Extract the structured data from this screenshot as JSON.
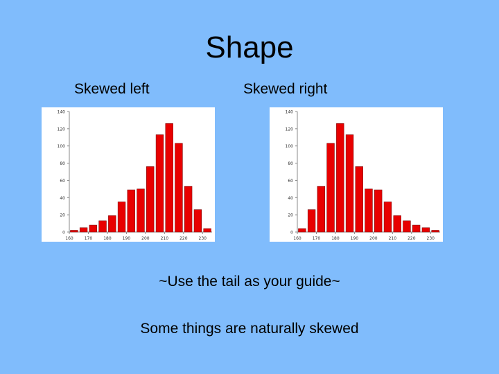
{
  "slide": {
    "title": "Shape",
    "left_label": "Skewed left",
    "right_label": "Skewed right",
    "guide_text": "~Use the tail as your guide~",
    "note_text": "Some things are naturally skewed"
  },
  "colors": {
    "background": "#80bcfc",
    "bar_fill": "#e80000",
    "bar_stroke": "#800000",
    "chart_bg": "#ffffff"
  },
  "chart_data": [
    {
      "type": "bar",
      "title": "",
      "xlabel": "",
      "ylabel": "",
      "bin_start": 160,
      "bin_width": 5,
      "xticks": [
        160,
        170,
        180,
        190,
        200,
        210,
        220,
        230
      ],
      "xtick_labels": [
        "160",
        "170",
        "180",
        "190",
        "200",
        "210",
        "220",
        "230"
      ],
      "yticks": [
        0,
        20,
        40,
        60,
        80,
        100,
        120,
        140
      ],
      "ytick_labels": [
        "0",
        "20",
        "40",
        "60",
        "80",
        "100",
        "120",
        "140"
      ],
      "ylim": [
        0,
        140
      ],
      "values": [
        2,
        5,
        8,
        13,
        19,
        35,
        49,
        50,
        76,
        113,
        126,
        103,
        53,
        26,
        4
      ],
      "grid": false
    },
    {
      "type": "bar",
      "title": "",
      "xlabel": "",
      "ylabel": "",
      "bin_start": 160,
      "bin_width": 5,
      "xticks": [
        160,
        170,
        180,
        190,
        200,
        210,
        220,
        230
      ],
      "xtick_labels": [
        "160",
        "170",
        "180",
        "190",
        "200",
        "210",
        "220",
        "230"
      ],
      "yticks": [
        0,
        20,
        40,
        60,
        80,
        100,
        120,
        140
      ],
      "ytick_labels": [
        "0",
        "20",
        "40",
        "60",
        "80",
        "100",
        "120",
        "140"
      ],
      "ylim": [
        0,
        140
      ],
      "values": [
        4,
        26,
        53,
        103,
        126,
        113,
        76,
        50,
        49,
        35,
        19,
        13,
        8,
        5,
        2
      ],
      "grid": false
    }
  ]
}
